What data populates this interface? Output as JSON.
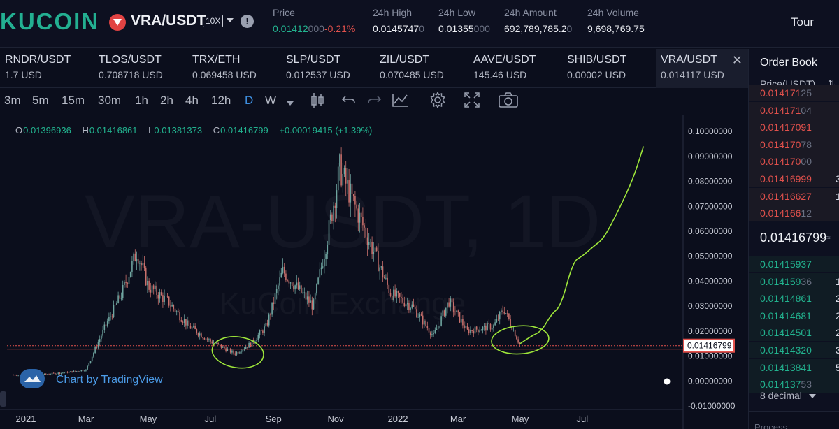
{
  "header": {
    "logo": "KUCOIN",
    "pair": "VRA/USDT",
    "leverage": "10X",
    "stats": [
      {
        "label": "Price",
        "value_main": "0.01412",
        "value_dim": "000",
        "change": "-0.21%"
      },
      {
        "label": "24h High",
        "value_main": "0.0145747",
        "value_dim": "0"
      },
      {
        "label": "24h Low",
        "value_main": "0.01355",
        "value_dim": "000"
      },
      {
        "label": "24h Amount",
        "value_main": "692,789,785.2",
        "value_dim": "0"
      },
      {
        "label": "24h Volume",
        "value_main": "9,698,769.75",
        "value_dim": ""
      }
    ],
    "tour": "Tour"
  },
  "tabs": [
    {
      "pair": "RNDR/USDT",
      "price": "1.7 USD"
    },
    {
      "pair": "TLOS/USDT",
      "price": "0.708718 USD"
    },
    {
      "pair": "TRX/ETH",
      "price": "0.069458 USD"
    },
    {
      "pair": "SLP/USDT",
      "price": "0.012537 USD"
    },
    {
      "pair": "ZIL/USDT",
      "price": "0.070485 USD"
    },
    {
      "pair": "AAVE/USDT",
      "price": "145.46 USD"
    },
    {
      "pair": "SHIB/USDT",
      "price": "0.00002 USD"
    },
    {
      "pair": "VRA/USDT",
      "price": "0.014117 USD",
      "active": true
    }
  ],
  "toolbar": {
    "intervals": [
      "3m",
      "5m",
      "15m",
      "30m",
      "1h",
      "2h",
      "4h",
      "12h",
      "D",
      "W"
    ],
    "active_interval": "D",
    "icons": [
      "candlestick-icon",
      "undo-icon",
      "redo-icon",
      "indicators-icon",
      "settings-icon",
      "fullscreen-icon",
      "camera-icon"
    ]
  },
  "ohlc": {
    "o_label": "O",
    "o": "0.01396936",
    "h_label": "H",
    "h": "0.01416861",
    "l_label": "L",
    "l": "0.01381373",
    "c_label": "C",
    "c": "0.01416799",
    "change": "+0.00019415 (+1.39%)"
  },
  "chart": {
    "watermark": "VRA-USDT, 1D",
    "watermark_sub": "KuCoin Exchange",
    "tv_label": "Chart by TradingView",
    "last_price_label": "0.01416799"
  },
  "chart_data": {
    "type": "candlestick",
    "x_ticks": [
      "2021",
      "Mar",
      "May",
      "Jul",
      "Sep",
      "Nov",
      "2022",
      "Mar",
      "May",
      "Jul"
    ],
    "y_ticks": [
      "0.10000000",
      "0.09000000",
      "0.08000000",
      "0.07000000",
      "0.06000000",
      "0.05000000",
      "0.04000000",
      "0.03000000",
      "0.02000000",
      "0.01000000",
      "0.00000000",
      "-0.01000000"
    ],
    "ylim": [
      -0.0125,
      0.1045
    ],
    "price_path": [
      {
        "date": "2020-12-20",
        "close": 0.0025
      },
      {
        "date": "2021-01-15",
        "close": 0.0025
      },
      {
        "date": "2021-02-10",
        "close": 0.0035
      },
      {
        "date": "2021-03-01",
        "close": 0.0045
      },
      {
        "date": "2021-03-20",
        "close": 0.022
      },
      {
        "date": "2021-04-05",
        "close": 0.035
      },
      {
        "date": "2021-04-20",
        "close": 0.052
      },
      {
        "date": "2021-05-01",
        "close": 0.038
      },
      {
        "date": "2021-05-20",
        "close": 0.032
      },
      {
        "date": "2021-06-10",
        "close": 0.022
      },
      {
        "date": "2021-07-01",
        "close": 0.016
      },
      {
        "date": "2021-07-25",
        "close": 0.011
      },
      {
        "date": "2021-08-10",
        "close": 0.015
      },
      {
        "date": "2021-08-25",
        "close": 0.022
      },
      {
        "date": "2021-09-10",
        "close": 0.044
      },
      {
        "date": "2021-09-25",
        "close": 0.037
      },
      {
        "date": "2021-10-10",
        "close": 0.03
      },
      {
        "date": "2021-10-25",
        "close": 0.06
      },
      {
        "date": "2021-11-05",
        "close": 0.085
      },
      {
        "date": "2021-11-20",
        "close": 0.07
      },
      {
        "date": "2021-12-10",
        "close": 0.05
      },
      {
        "date": "2021-12-25",
        "close": 0.035
      },
      {
        "date": "2022-01-15",
        "close": 0.03
      },
      {
        "date": "2022-02-05",
        "close": 0.018
      },
      {
        "date": "2022-02-20",
        "close": 0.032
      },
      {
        "date": "2022-03-10",
        "close": 0.02
      },
      {
        "date": "2022-04-05",
        "close": 0.022
      },
      {
        "date": "2022-04-15",
        "close": 0.029
      },
      {
        "date": "2022-04-25",
        "close": 0.02
      },
      {
        "date": "2022-05-01",
        "close": 0.0142
      }
    ],
    "annotation_projection": [
      {
        "date": "2022-05-01",
        "value": 0.015
      },
      {
        "date": "2022-05-12",
        "value": 0.018
      },
      {
        "date": "2022-05-22",
        "value": 0.02
      },
      {
        "date": "2022-06-01",
        "value": 0.027
      },
      {
        "date": "2022-06-10",
        "value": 0.03
      },
      {
        "date": "2022-06-22",
        "value": 0.048
      },
      {
        "date": "2022-07-01",
        "value": 0.05
      },
      {
        "date": "2022-07-12",
        "value": 0.054
      },
      {
        "date": "2022-07-22",
        "value": 0.057
      },
      {
        "date": "2022-08-05",
        "value": 0.068
      },
      {
        "date": "2022-08-20",
        "value": 0.081
      },
      {
        "date": "2022-08-30",
        "value": 0.094
      }
    ],
    "annotation_circles": [
      {
        "date": "2021-07-28",
        "value": 0.0115
      },
      {
        "date": "2022-05-01",
        "value": 0.0165
      }
    ],
    "last_price": 0.01416799,
    "colors": {
      "up": "#6fa5a0",
      "down": "#c9706c",
      "annotation": "#9ee63a",
      "price_line": "#e2514c"
    }
  },
  "orderbook": {
    "title": "Order Book",
    "column": "Price(USDT)",
    "asks": [
      {
        "main": "0.014171",
        "dim": "25",
        "qty": ""
      },
      {
        "main": "0.014171",
        "dim": "04",
        "qty": ""
      },
      {
        "main": "0.01417091",
        "dim": "",
        "qty": ""
      },
      {
        "main": "0.014170",
        "dim": "78",
        "qty": ""
      },
      {
        "main": "0.014170",
        "dim": "00",
        "qty": ""
      },
      {
        "main": "0.01416999",
        "dim": "",
        "qty": "3"
      },
      {
        "main": "0.01416627",
        "dim": "",
        "qty": "1"
      },
      {
        "main": "0.014166",
        "dim": "12",
        "qty": ""
      }
    ],
    "last_price": "0.01416799",
    "last_approx": "≈",
    "bids": [
      {
        "main": "0.01415937",
        "dim": "",
        "qty": ""
      },
      {
        "main": "0.014159",
        "dim": "36",
        "qty": "1"
      },
      {
        "main": "0.01414861",
        "dim": "",
        "qty": "2"
      },
      {
        "main": "0.01414681",
        "dim": "",
        "qty": "2"
      },
      {
        "main": "0.01414501",
        "dim": "",
        "qty": "2"
      },
      {
        "main": "0.01414320",
        "dim": "",
        "qty": "3"
      },
      {
        "main": "0.01413841",
        "dim": "",
        "qty": "5"
      },
      {
        "main": "0.014137",
        "dim": "53",
        "qty": ""
      }
    ],
    "decimal": "8 decimal",
    "footer": "Process"
  }
}
